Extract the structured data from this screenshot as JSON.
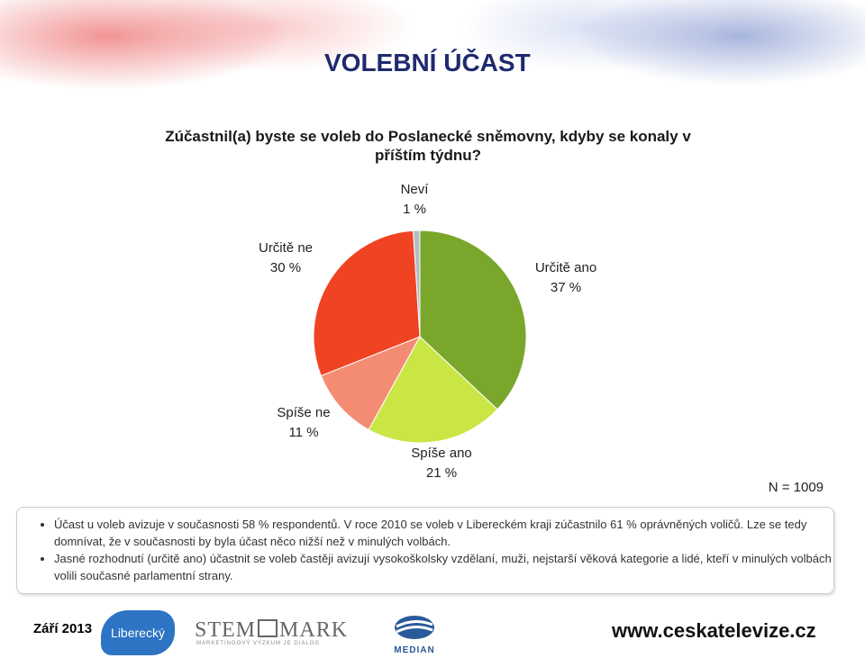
{
  "slide_title": "VOLEBNÍ ÚČAST",
  "chart_data": {
    "type": "pie",
    "title": "Zúčastnil(a) byste se voleb do Poslanecké sněmovny, kdyby se konaly v příštím týdnu?",
    "categories": [
      "Určitě ano",
      "Spíše ano",
      "Spíše ne",
      "Určitě ne",
      "Neví"
    ],
    "values": [
      37,
      21,
      11,
      30,
      1
    ],
    "value_labels": [
      "37 %",
      "21 %",
      "11 %",
      "30 %",
      "1 %"
    ],
    "colors": [
      "#7aa62b",
      "#c9e645",
      "#f48c74",
      "#ef4323",
      "#b4bcc4"
    ],
    "note": "N = 1009"
  },
  "bullets": [
    "Účast u voleb avizuje v současnosti 58 % respondentů. V roce 2010 se voleb v Libereckém kraji zúčastnilo 61 % oprávněných voličů. Lze se tedy domnívat, že v současnosti by byla účast něco nižší než v minulých volbách.",
    "Jasné rozhodnutí (určitě ano) účastnit se voleb častěji avizují vysokoškolsky vzdělaní, muži, nejstarší věková kategorie a lidé, kteří v minulých volbách volili současné parlamentní strany."
  ],
  "footer": {
    "date": "Září 2013",
    "region": "Liberecký",
    "stem_left": "STEM",
    "stem_right": "MARK",
    "stem_tagline": "MARKETINGOVÝ VÝZKUM JE DIALOG",
    "median": "MEDIAN",
    "url": "www.ceskatelevize.cz"
  }
}
